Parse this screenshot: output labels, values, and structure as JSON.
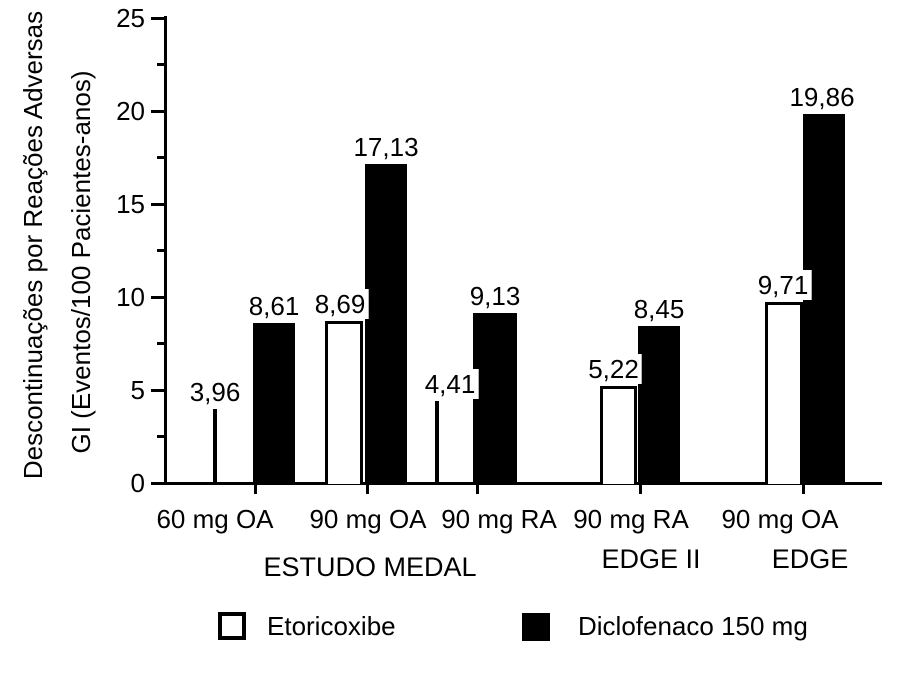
{
  "figure": {
    "background": "#ffffff",
    "axis_color": "#000000"
  },
  "chart_data": {
    "type": "bar",
    "title": "",
    "ylabel": [
      "Descontinuações por Reações Adversas",
      "GI (Eventos/100 Pacientes-anos)"
    ],
    "xlabel": "",
    "ylim": [
      0,
      25
    ],
    "yticks": [
      0,
      5,
      10,
      15,
      20,
      25
    ],
    "yticks_minor": [
      2.5,
      7.5,
      12.5,
      17.5,
      22.5
    ],
    "grid": false,
    "categories": [
      "60 mg OA",
      "90 mg OA",
      "90 mg RA",
      "90 mg RA",
      "90 mg OA"
    ],
    "study_labels": [
      "ESTUDO MEDAL",
      "EDGE II",
      "EDGE"
    ],
    "series": [
      {
        "name": "Etoricoxibe",
        "color": "#ffffff",
        "border_color": "#000000",
        "values": [
          3.96,
          8.69,
          4.41,
          5.22,
          9.71
        ],
        "labels": [
          "3,96",
          "8,69",
          "4,41",
          "5,22",
          "9,71"
        ]
      },
      {
        "name": "Diclofenaco 150 mg",
        "color": "#000000",
        "values": [
          8.61,
          17.13,
          9.13,
          8.45,
          19.86
        ],
        "labels": [
          "8,61",
          "17,13",
          "9,13",
          "8,45",
          "19,86"
        ]
      }
    ],
    "legend_position": "bottom"
  }
}
